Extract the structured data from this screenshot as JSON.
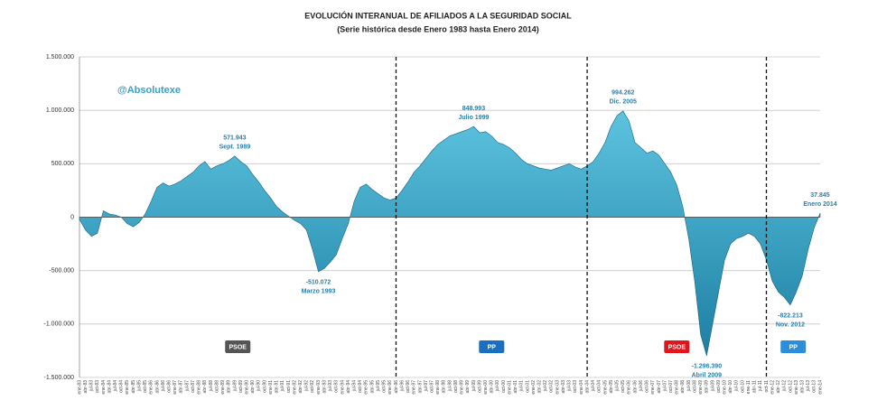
{
  "chart_data": {
    "type": "area",
    "title": "EVOLUCIÓN INTERANUAL DE AFILIADOS A LA SEGURIDAD SOCIAL",
    "subtitle": "(Serie histórica desde Enero 1983 hasta Enero 2014)",
    "brand": "@Absolutexe",
    "color": "#2e9cc0",
    "grid": true,
    "categories": [
      "ene-83",
      "abr-83",
      "jul-83",
      "oct-83",
      "ene-84",
      "abr-84",
      "jul-84",
      "oct-84",
      "ene-85",
      "abr-85",
      "jul-85",
      "oct-85",
      "ene-86",
      "abr-86",
      "jul-86",
      "oct-86",
      "ene-87",
      "abr-87",
      "jul-87",
      "oct-87",
      "ene-88",
      "abr-88",
      "jul-88",
      "oct-88",
      "ene-89",
      "abr-89",
      "jul-89",
      "oct-89",
      "ene-90",
      "abr-90",
      "jul-90",
      "oct-90",
      "ene-91",
      "abr-91",
      "jul-91",
      "oct-91",
      "ene-92",
      "abr-92",
      "jul-92",
      "oct-92",
      "ene-93",
      "abr-93",
      "jul-93",
      "oct-93",
      "ene-94",
      "abr-94",
      "jul-94",
      "oct-94",
      "ene-95",
      "abr-95",
      "jul-95",
      "oct-95",
      "ene-96",
      "abr-96",
      "jul-96",
      "oct-96",
      "ene-97",
      "abr-97",
      "jul-97",
      "oct-97",
      "ene-98",
      "abr-98",
      "jul-98",
      "oct-98",
      "ene-99",
      "abr-99",
      "jul-99",
      "oct-99",
      "ene-00",
      "abr-00",
      "jul-00",
      "oct-00",
      "ene-01",
      "abr-01",
      "jul-01",
      "oct-01",
      "ene-02",
      "abr-02",
      "jul-02",
      "oct-02",
      "ene-03",
      "abr-03",
      "jul-03",
      "oct-03",
      "ene-04",
      "abr-04",
      "jul-04",
      "oct-04",
      "ene-05",
      "abr-05",
      "jul-05",
      "oct-05",
      "ene-06",
      "abr-06",
      "jul-06",
      "oct-06",
      "ene-07",
      "abr-07",
      "jul-07",
      "oct-07",
      "ene-08",
      "abr-08",
      "jul-08",
      "oct-08",
      "ene-09",
      "abr-09",
      "jul-09",
      "oct-09",
      "ene-10",
      "abr-10",
      "jul-10",
      "oct-10",
      "ene-11",
      "abr-11",
      "jul-11",
      "oct-11",
      "ene-12",
      "abr-12",
      "jul-12",
      "oct-12",
      "ene-13",
      "abr-13",
      "jul-13",
      "oct-13",
      "ene-14"
    ],
    "values": [
      -20000,
      -120000,
      -180000,
      -150000,
      60000,
      30000,
      20000,
      0,
      -60000,
      -90000,
      -50000,
      30000,
      150000,
      280000,
      320000,
      290000,
      310000,
      340000,
      380000,
      420000,
      480000,
      520000,
      450000,
      480000,
      500000,
      530000,
      571943,
      520000,
      480000,
      400000,
      330000,
      250000,
      180000,
      100000,
      50000,
      10000,
      -30000,
      -60000,
      -120000,
      -300000,
      -510072,
      -480000,
      -420000,
      -350000,
      -200000,
      -60000,
      150000,
      280000,
      310000,
      260000,
      220000,
      180000,
      160000,
      180000,
      250000,
      330000,
      420000,
      480000,
      550000,
      620000,
      680000,
      720000,
      760000,
      780000,
      800000,
      820000,
      848993,
      790000,
      800000,
      760000,
      700000,
      680000,
      650000,
      600000,
      540000,
      500000,
      480000,
      460000,
      450000,
      440000,
      460000,
      480000,
      500000,
      470000,
      450000,
      480000,
      520000,
      600000,
      700000,
      850000,
      950000,
      994262,
      900000,
      700000,
      650000,
      600000,
      620000,
      580000,
      500000,
      420000,
      300000,
      100000,
      -200000,
      -600000,
      -1100000,
      -1296390,
      -1000000,
      -700000,
      -400000,
      -250000,
      -200000,
      -180000,
      -150000,
      -180000,
      -250000,
      -400000,
      -600000,
      -700000,
      -750000,
      -822213,
      -700000,
      -550000,
      -300000,
      -100000,
      37845
    ],
    "ylim": [
      -1500000,
      1500000
    ],
    "yticks": [
      {
        "value": -1500000,
        "label": "-1.500.000"
      },
      {
        "value": -1000000,
        "label": "-1.000.000"
      },
      {
        "value": -500000,
        "label": "-500.000"
      },
      0,
      {
        "value": 500000,
        "label": "500.000"
      },
      {
        "value": 1000000,
        "label": "1.000.000"
      },
      {
        "value": 1500000,
        "label": "1.500.000"
      }
    ],
    "annotations": [
      {
        "value": 571943,
        "value_label": "571.943",
        "label": "Sept. 1989"
      },
      {
        "value": -510072,
        "value_label": "-510.072",
        "label": "Marzo 1993"
      },
      {
        "value": 848993,
        "value_label": "848.993",
        "label": "Julio 1999"
      },
      {
        "value": 994262,
        "value_label": "994.262",
        "label": "Dic. 2005"
      },
      {
        "value": -1296390,
        "value_label": "-1.296.390",
        "label": "Abril 2009"
      },
      {
        "value": -822213,
        "value_label": "-822.213",
        "label": "Nov. 2012"
      },
      {
        "value": 37845,
        "value_label": "37.845",
        "label": "Enero 2014"
      }
    ],
    "government_changes": [
      "abr-96",
      "abr-04",
      "oct-11"
    ],
    "party_logos": [
      {
        "label": "PSOE",
        "color": "#555555"
      },
      {
        "label": "PP",
        "color": "#1a6fc0"
      },
      {
        "label": "PSOE",
        "color": "#e0161b"
      },
      {
        "label": "PP",
        "color": "#2a8fd8"
      }
    ]
  }
}
